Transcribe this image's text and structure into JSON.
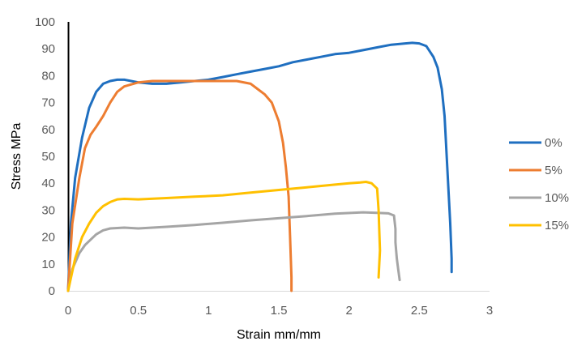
{
  "chart_data": {
    "type": "line",
    "title": "",
    "xlabel": "Strain mm/mm",
    "ylabel": "Stress MPa",
    "xlim": [
      0,
      3
    ],
    "ylim": [
      0,
      100
    ],
    "xticks": [
      0,
      0.5,
      1,
      1.5,
      2,
      2.5,
      3
    ],
    "yticks": [
      0,
      10,
      20,
      30,
      40,
      50,
      60,
      70,
      80,
      90,
      100
    ],
    "grid": false,
    "legend_position": "right",
    "series": [
      {
        "name": "0%",
        "color": "#1F6FC0",
        "x": [
          0,
          0.02,
          0.05,
          0.1,
          0.15,
          0.2,
          0.25,
          0.3,
          0.35,
          0.4,
          0.5,
          0.6,
          0.7,
          0.8,
          0.9,
          1.0,
          1.1,
          1.2,
          1.3,
          1.4,
          1.5,
          1.6,
          1.7,
          1.8,
          1.9,
          2.0,
          2.1,
          2.2,
          2.3,
          2.4,
          2.45,
          2.5,
          2.55,
          2.6,
          2.63,
          2.66,
          2.68,
          2.7,
          2.72,
          2.73,
          2.73
        ],
        "y": [
          0,
          25,
          42,
          57,
          68,
          74,
          77,
          78,
          78.5,
          78.5,
          77.5,
          77,
          77,
          77.5,
          78,
          78.5,
          79.5,
          80.5,
          81.5,
          82.5,
          83.5,
          85,
          86,
          87,
          88,
          88.5,
          89.5,
          90.5,
          91.5,
          92,
          92.2,
          92,
          91,
          87,
          83,
          75,
          65,
          45,
          25,
          12,
          7
        ]
      },
      {
        "name": "5%",
        "color": "#ED7D31",
        "x": [
          0,
          0.03,
          0.08,
          0.12,
          0.16,
          0.2,
          0.25,
          0.3,
          0.35,
          0.4,
          0.5,
          0.6,
          0.7,
          0.8,
          0.9,
          1.0,
          1.1,
          1.2,
          1.3,
          1.35,
          1.4,
          1.45,
          1.5,
          1.53,
          1.55,
          1.57,
          1.58,
          1.59,
          1.59
        ],
        "y": [
          0,
          25,
          42,
          53,
          58,
          61,
          65,
          70,
          74,
          76,
          77.5,
          78,
          78,
          78,
          78,
          78,
          78,
          78,
          77,
          75,
          73,
          70,
          63,
          55,
          46,
          35,
          20,
          5,
          0
        ]
      },
      {
        "name": "10%",
        "color": "#A5A5A5",
        "x": [
          0,
          0.03,
          0.08,
          0.12,
          0.16,
          0.2,
          0.25,
          0.3,
          0.4,
          0.5,
          0.7,
          0.9,
          1.1,
          1.3,
          1.5,
          1.7,
          1.9,
          2.1,
          2.2,
          2.28,
          2.32,
          2.33,
          2.33,
          2.34,
          2.35,
          2.36
        ],
        "y": [
          0,
          8,
          14,
          17,
          19,
          21,
          22.5,
          23.2,
          23.5,
          23.2,
          23.8,
          24.5,
          25.3,
          26.2,
          27,
          27.8,
          28.7,
          29.2,
          29,
          28.8,
          28,
          23,
          18,
          12,
          8,
          4
        ]
      },
      {
        "name": "15%",
        "color": "#FFC000",
        "x": [
          0,
          0.05,
          0.1,
          0.15,
          0.2,
          0.25,
          0.3,
          0.35,
          0.4,
          0.5,
          0.7,
          0.9,
          1.1,
          1.3,
          1.5,
          1.7,
          1.9,
          2.0,
          2.08,
          2.12,
          2.16,
          2.2,
          2.21,
          2.22,
          2.21
        ],
        "y": [
          0,
          12,
          20,
          25,
          29,
          31.5,
          33,
          34,
          34.2,
          34,
          34.5,
          35,
          35.5,
          36.5,
          37.5,
          38.5,
          39.5,
          40,
          40.3,
          40.5,
          40,
          38,
          30,
          15,
          5
        ]
      }
    ]
  }
}
